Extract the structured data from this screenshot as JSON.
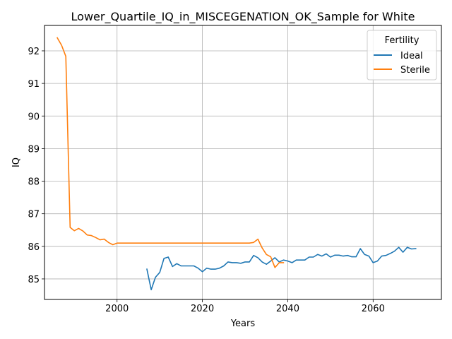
{
  "chart_data": {
    "type": "line",
    "title": "Lower_Quartile_IQ_in_MISCEGENATION_OK_Sample for White",
    "xlabel": "Years",
    "ylabel": "IQ",
    "xlim": [
      1983,
      2076
    ],
    "ylim": [
      84.37,
      92.78
    ],
    "xticks": [
      2000,
      2020,
      2040,
      2060
    ],
    "yticks": [
      85,
      86,
      87,
      88,
      89,
      90,
      91,
      92
    ],
    "grid": true,
    "legend": {
      "title": "Fertility",
      "position": "top-right"
    },
    "series": [
      {
        "name": "Ideal",
        "color": "#1f77b4",
        "x": [
          2007,
          2008,
          2009,
          2010,
          2011,
          2012,
          2013,
          2014,
          2015,
          2016,
          2017,
          2018,
          2019,
          2020,
          2021,
          2022,
          2023,
          2024,
          2025,
          2026,
          2027,
          2028,
          2029,
          2030,
          2031,
          2032,
          2033,
          2034,
          2035,
          2036,
          2037,
          2038,
          2039,
          2040,
          2041,
          2042,
          2043,
          2044,
          2045,
          2046,
          2047,
          2048,
          2049,
          2050,
          2051,
          2052,
          2053,
          2054,
          2055,
          2056,
          2057,
          2058,
          2059,
          2060,
          2061,
          2062,
          2063,
          2064,
          2065,
          2066,
          2067,
          2068,
          2069,
          2070
        ],
        "y": [
          85.3,
          84.67,
          85.05,
          85.2,
          85.63,
          85.67,
          85.38,
          85.47,
          85.4,
          85.4,
          85.4,
          85.4,
          85.33,
          85.22,
          85.33,
          85.3,
          85.3,
          85.33,
          85.4,
          85.52,
          85.5,
          85.5,
          85.48,
          85.52,
          85.52,
          85.72,
          85.65,
          85.52,
          85.45,
          85.55,
          85.65,
          85.52,
          85.58,
          85.55,
          85.5,
          85.58,
          85.58,
          85.58,
          85.67,
          85.67,
          85.75,
          85.7,
          85.77,
          85.67,
          85.73,
          85.73,
          85.7,
          85.72,
          85.68,
          85.68,
          85.93,
          85.75,
          85.7,
          85.5,
          85.55,
          85.7,
          85.72,
          85.78,
          85.85,
          85.97,
          85.82,
          85.97,
          85.92,
          85.93
        ]
      },
      {
        "name": "Sterile",
        "color": "#ff7f0e",
        "x": [
          1986,
          1987,
          1988,
          1989,
          1990,
          1991,
          1992,
          1993,
          1994,
          1995,
          1996,
          1997,
          1998,
          1999,
          2000,
          2001,
          2005,
          2010,
          2015,
          2020,
          2025,
          2030,
          2031,
          2032,
          2033,
          2034,
          2035,
          2036,
          2037,
          2038,
          2039
        ],
        "y": [
          92.4,
          92.17,
          91.83,
          86.58,
          86.48,
          86.55,
          86.47,
          86.35,
          86.33,
          86.27,
          86.2,
          86.22,
          86.12,
          86.05,
          86.1,
          86.1,
          86.1,
          86.1,
          86.1,
          86.1,
          86.1,
          86.1,
          86.1,
          86.12,
          86.22,
          85.95,
          85.75,
          85.68,
          85.35,
          85.5,
          85.5
        ]
      }
    ]
  }
}
